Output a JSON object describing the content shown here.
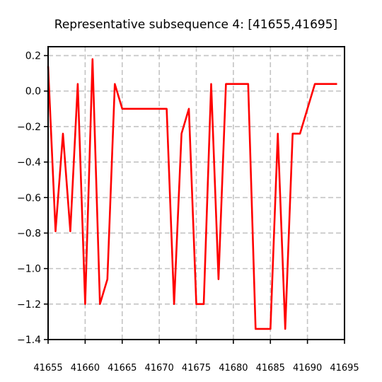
{
  "chart_data": {
    "type": "line",
    "title": "Representative subsequence 4: [41655,41695]",
    "xlabel": "",
    "ylabel": "",
    "xlim": [
      41655,
      41695
    ],
    "ylim": [
      -1.4,
      0.25
    ],
    "grid": true,
    "x_ticks": [
      41655,
      41660,
      41665,
      41670,
      41675,
      41680,
      41685,
      41690,
      41695
    ],
    "x_tick_labels": [
      "41655",
      "41660",
      "41665",
      "41670",
      "41675",
      "41680",
      "41685",
      "41690",
      "41695"
    ],
    "y_ticks": [
      0.2,
      0.0,
      -0.2,
      -0.4,
      -0.6,
      -0.8,
      -1.0,
      -1.2,
      -1.4
    ],
    "y_tick_labels": [
      "0.2",
      "0.0",
      "−0.2",
      "−0.4",
      "−0.6",
      "−0.8",
      "−1.0",
      "−1.2",
      "−1.4"
    ],
    "series": [
      {
        "color": "#ff0000",
        "x": [
          41655,
          41656,
          41657,
          41658,
          41659,
          41660,
          41661,
          41662,
          41663,
          41664,
          41665,
          41666,
          41667,
          41668,
          41669,
          41670,
          41671,
          41672,
          41673,
          41674,
          41675,
          41676,
          41677,
          41678,
          41679,
          41680,
          41681,
          41682,
          41683,
          41684,
          41685,
          41686,
          41687,
          41688,
          41689,
          41690,
          41691,
          41692,
          41693,
          41694
        ],
        "values": [
          0.14,
          -0.79,
          -0.24,
          -0.79,
          0.04,
          -1.2,
          0.18,
          -1.2,
          -1.06,
          0.04,
          -0.1,
          -0.1,
          -0.1,
          -0.1,
          -0.1,
          -0.1,
          -0.1,
          -1.2,
          -0.24,
          -0.1,
          -1.2,
          -1.2,
          0.04,
          -1.06,
          0.04,
          0.04,
          0.04,
          0.04,
          -1.34,
          -1.34,
          -1.34,
          -0.24,
          -1.34,
          -0.24,
          -0.24,
          -0.1,
          0.04,
          0.04,
          0.04,
          0.04
        ]
      }
    ]
  }
}
